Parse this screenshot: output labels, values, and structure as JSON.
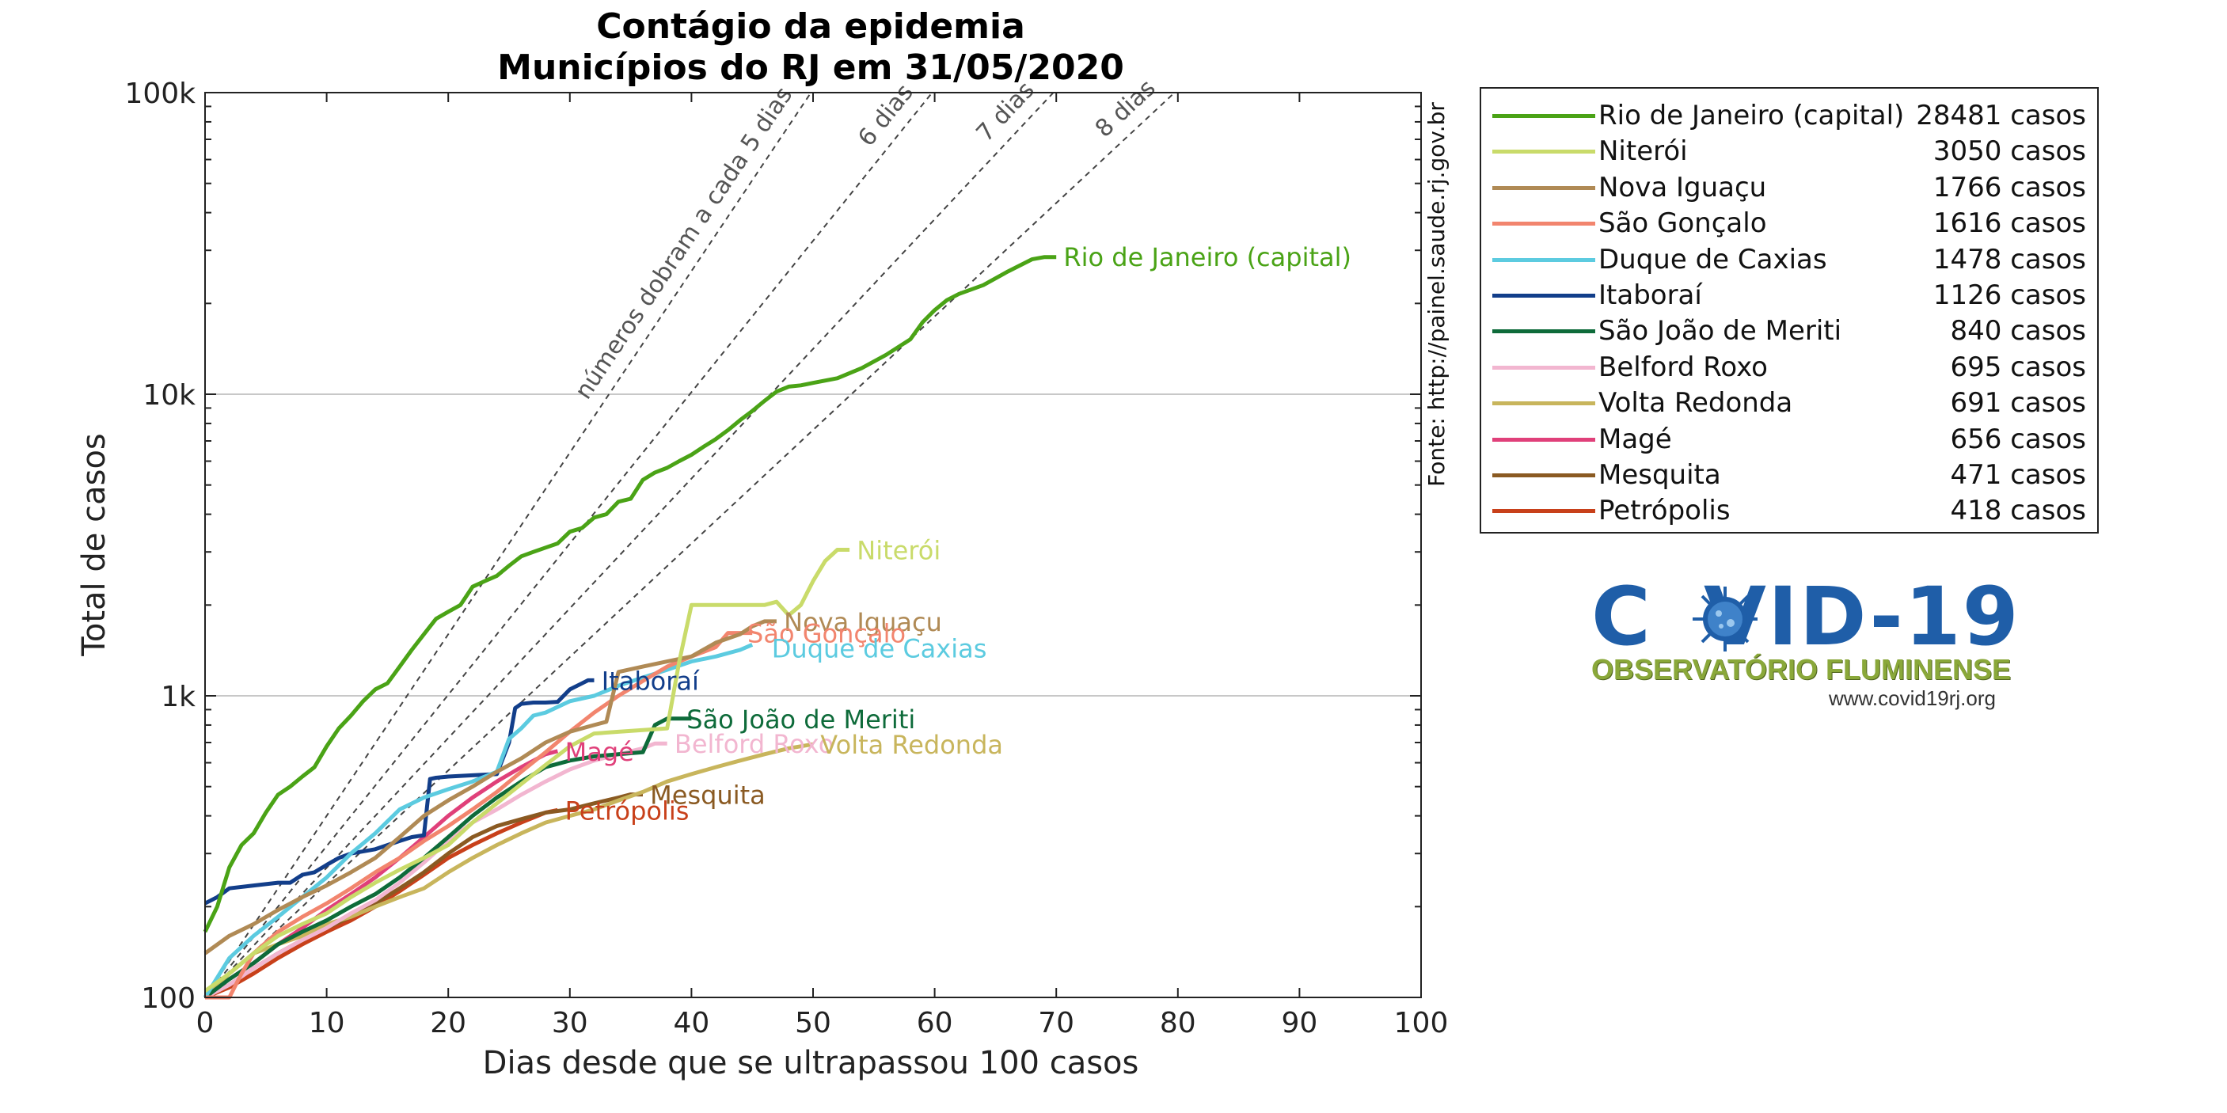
{
  "chart_data": {
    "type": "line",
    "title": "Contágio da epidemia",
    "subtitle": "Municípios do RJ em 31/05/2020",
    "xlabel": "Dias desde que se ultrapassou 100 casos",
    "ylabel": "Total de casos",
    "xlim": [
      0,
      100
    ],
    "ylim": [
      100,
      100000
    ],
    "yscale": "log",
    "grid": "major-y",
    "x_ticks": [
      0,
      10,
      20,
      30,
      40,
      50,
      60,
      70,
      80,
      90,
      100
    ],
    "y_ticks": [
      {
        "value": 100,
        "label": "100"
      },
      {
        "value": 1000,
        "label": "1k"
      },
      {
        "value": 10000,
        "label": "10k"
      },
      {
        "value": 100000,
        "label": "100k"
      }
    ],
    "source_note": "Fonte: http://painel.saude.rj.gov.br",
    "legend_position": "outside-right",
    "doubling_lines": [
      {
        "days": 5,
        "label": "números dobram a cada 5 dias"
      },
      {
        "days": 6,
        "label": "6 dias"
      },
      {
        "days": 7,
        "label": "7 dias"
      },
      {
        "days": 8,
        "label": "8 dias"
      }
    ],
    "series": [
      {
        "name": "Rio de Janeiro (capital)",
        "legend_count": "28481 casos",
        "color": "#4aa316",
        "x": [
          0,
          1,
          2,
          3,
          4,
          5,
          6,
          7,
          8,
          9,
          10,
          11,
          12,
          13,
          14,
          15,
          16,
          17,
          18,
          19,
          20,
          21,
          22,
          23,
          24,
          25,
          26,
          27,
          28,
          29,
          30,
          31,
          32,
          33,
          34,
          35,
          36,
          37,
          38,
          39,
          40,
          41,
          42,
          43,
          44,
          45,
          46,
          47,
          48,
          49,
          50,
          52,
          54,
          56,
          58,
          59,
          60,
          61,
          62,
          64,
          66,
          68,
          69,
          70
        ],
        "y": [
          165,
          200,
          270,
          320,
          350,
          410,
          470,
          500,
          540,
          580,
          680,
          780,
          860,
          960,
          1050,
          1100,
          1250,
          1420,
          1600,
          1800,
          1900,
          2000,
          2300,
          2400,
          2500,
          2700,
          2900,
          3000,
          3100,
          3200,
          3500,
          3600,
          3900,
          4000,
          4400,
          4500,
          5200,
          5500,
          5700,
          6000,
          6300,
          6700,
          7100,
          7600,
          8200,
          8800,
          9500,
          10200,
          10600,
          10700,
          10900,
          11300,
          12200,
          13500,
          15200,
          17300,
          19000,
          20500,
          21500,
          23000,
          25500,
          28000,
          28481,
          28481
        ],
        "label": "Rio de Janeiro (capital)",
        "label_at": [
          70.6,
          28600
        ]
      },
      {
        "name": "Niterói",
        "legend_count": "3050 casos",
        "color": "#c9db6a",
        "x": [
          0,
          2,
          4,
          6,
          8,
          10,
          12,
          14,
          16,
          18,
          20,
          22,
          24,
          26,
          28,
          30,
          32,
          34,
          36,
          38,
          39,
          40,
          42,
          44,
          46,
          47,
          48,
          49,
          50,
          51,
          52,
          53
        ],
        "y": [
          105,
          120,
          140,
          160,
          175,
          190,
          215,
          240,
          265,
          290,
          320,
          380,
          440,
          510,
          590,
          680,
          750,
          760,
          770,
          780,
          1300,
          2000,
          2000,
          2000,
          2000,
          2050,
          1850,
          2000,
          2400,
          2800,
          3050,
          3050
        ],
        "label": "Niterói",
        "label_at": [
          53.6,
          3050
        ]
      },
      {
        "name": "Nova Iguaçu",
        "legend_count": "1766 casos",
        "color": "#b08a55",
        "x": [
          0,
          2,
          4,
          6,
          8,
          10,
          12,
          14,
          16,
          18,
          20,
          22,
          24,
          26,
          28,
          30,
          32,
          33,
          34,
          36,
          38,
          40,
          42,
          44,
          45,
          46,
          47
        ],
        "y": [
          140,
          160,
          175,
          195,
          215,
          235,
          260,
          290,
          340,
          400,
          450,
          500,
          560,
          620,
          700,
          760,
          800,
          820,
          1200,
          1250,
          1300,
          1350,
          1500,
          1600,
          1700,
          1766,
          1766
        ],
        "label": "Nova Iguaçu",
        "label_at": [
          47.6,
          1766
        ]
      },
      {
        "name": "São Gonçalo",
        "legend_count": "1616 casos",
        "color": "#f2856e",
        "x": [
          0,
          2,
          3,
          4,
          6,
          8,
          10,
          12,
          14,
          16,
          18,
          20,
          22,
          24,
          26,
          28,
          30,
          32,
          34,
          36,
          38,
          40,
          42,
          43,
          44,
          45
        ],
        "y": [
          100,
          100,
          120,
          140,
          165,
          185,
          205,
          230,
          260,
          290,
          330,
          370,
          420,
          480,
          560,
          650,
          760,
          880,
          1000,
          1120,
          1250,
          1350,
          1450,
          1616,
          1616,
          1616
        ],
        "label": "São Gonçalo",
        "label_at": [
          44.6,
          1616
        ]
      },
      {
        "name": "Duque de Caxias",
        "legend_count": "1478 casos",
        "color": "#5ccbe0",
        "x": [
          0,
          2,
          4,
          6,
          8,
          10,
          12,
          14,
          16,
          18,
          20,
          22,
          24,
          25,
          26,
          27,
          28,
          30,
          32,
          34,
          36,
          38,
          40,
          42,
          44,
          45
        ],
        "y": [
          100,
          135,
          160,
          185,
          215,
          250,
          300,
          350,
          420,
          460,
          490,
          520,
          560,
          720,
          780,
          860,
          880,
          960,
          1000,
          1080,
          1150,
          1220,
          1300,
          1350,
          1420,
          1478
        ],
        "label": "Duque de Caxias",
        "label_at": [
          46.6,
          1440
        ]
      },
      {
        "name": "Itaboraí",
        "legend_count": "1126 casos",
        "color": "#123e8a",
        "x": [
          0,
          1,
          2,
          4,
          6,
          7,
          8,
          9,
          10,
          11,
          12,
          14,
          16,
          17,
          18,
          18.5,
          19,
          20,
          22,
          24,
          25,
          25.5,
          26,
          27,
          28,
          29,
          30,
          31,
          31.5,
          32
        ],
        "y": [
          205,
          215,
          230,
          235,
          240,
          240,
          255,
          260,
          275,
          290,
          300,
          310,
          330,
          340,
          345,
          530,
          535,
          540,
          545,
          550,
          700,
          910,
          940,
          950,
          950,
          955,
          1050,
          1100,
          1126,
          1126
        ],
        "label": "Itaboraí",
        "label_at": [
          32.6,
          1126
        ]
      },
      {
        "name": "São João de Meriti",
        "legend_count": "840 casos",
        "color": "#0e6b3a",
        "x": [
          0,
          2,
          4,
          6,
          8,
          10,
          12,
          14,
          16,
          18,
          20,
          22,
          24,
          26,
          28,
          30,
          32,
          34,
          36,
          37,
          38,
          39,
          40
        ],
        "y": [
          100,
          115,
          130,
          150,
          165,
          180,
          200,
          220,
          250,
          290,
          340,
          400,
          460,
          520,
          580,
          610,
          630,
          640,
          650,
          800,
          840,
          840,
          840
        ],
        "label": "São João de Meriti",
        "label_at": [
          39.6,
          840
        ]
      },
      {
        "name": "Belford Roxo",
        "legend_count": "695 casos",
        "color": "#f2b6d0",
        "x": [
          0,
          2,
          4,
          6,
          8,
          10,
          12,
          14,
          16,
          18,
          20,
          22,
          24,
          26,
          28,
          30,
          32,
          34,
          36,
          37,
          38
        ],
        "y": [
          100,
          110,
          125,
          140,
          155,
          170,
          190,
          210,
          240,
          280,
          330,
          380,
          420,
          470,
          520,
          570,
          610,
          640,
          670,
          695,
          695
        ],
        "label": "Belford Roxo",
        "label_at": [
          38.6,
          695
        ]
      },
      {
        "name": "Volta Redonda",
        "legend_count": "691 casos",
        "color": "#c8b55c",
        "x": [
          0,
          2,
          4,
          6,
          8,
          10,
          12,
          14,
          16,
          18,
          20,
          22,
          24,
          26,
          28,
          30,
          32,
          34,
          36,
          38,
          40,
          42,
          44,
          46,
          48,
          50
        ],
        "y": [
          100,
          120,
          140,
          150,
          160,
          175,
          185,
          200,
          215,
          230,
          260,
          290,
          320,
          350,
          380,
          400,
          420,
          450,
          480,
          520,
          550,
          580,
          610,
          640,
          670,
          691
        ],
        "label": "Volta Redonda",
        "label_at": [
          50.6,
          691
        ]
      },
      {
        "name": "Magé",
        "legend_count": "656 casos",
        "color": "#e0407a",
        "x": [
          0,
          2,
          4,
          6,
          8,
          10,
          12,
          14,
          16,
          18,
          20,
          22,
          24,
          26,
          28,
          29
        ],
        "y": [
          100,
          115,
          130,
          150,
          170,
          195,
          220,
          250,
          290,
          340,
          400,
          460,
          520,
          580,
          640,
          656
        ],
        "label": "Magé",
        "label_at": [
          29.6,
          656
        ]
      },
      {
        "name": "Mesquita",
        "legend_count": "471 casos",
        "color": "#8a5a22",
        "x": [
          0,
          2,
          4,
          6,
          8,
          10,
          12,
          14,
          16,
          18,
          20,
          22,
          24,
          26,
          28,
          30,
          32,
          34,
          35,
          36
        ],
        "y": [
          100,
          110,
          125,
          140,
          155,
          170,
          185,
          205,
          230,
          260,
          300,
          340,
          370,
          390,
          410,
          420,
          440,
          460,
          471,
          471
        ],
        "label": "Mesquita",
        "label_at": [
          36.6,
          471
        ]
      },
      {
        "name": "Petrópolis",
        "legend_count": "418 casos",
        "color": "#c8401a",
        "x": [
          0,
          2,
          4,
          6,
          8,
          10,
          12,
          14,
          16,
          18,
          20,
          22,
          24,
          26,
          28,
          29
        ],
        "y": [
          100,
          108,
          120,
          135,
          150,
          165,
          180,
          200,
          225,
          255,
          290,
          320,
          350,
          380,
          410,
          418
        ],
        "label": "Petrópolis",
        "label_at": [
          29.6,
          418
        ]
      }
    ]
  }
}
